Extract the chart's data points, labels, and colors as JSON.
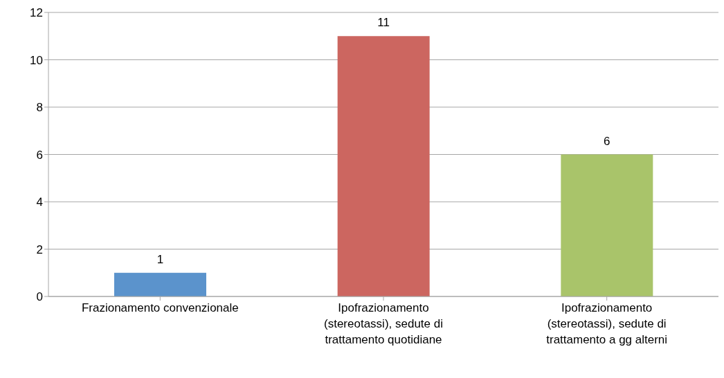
{
  "chart_data": {
    "type": "bar",
    "categories": [
      "Frazionamento convenzionale",
      "Ipofrazionamento (stereotassi), sedute di trattamento quotidiane",
      "Ipofrazionamento (stereotassi), sedute di trattamento a gg alterni"
    ],
    "values": [
      1,
      11,
      6
    ],
    "colors": [
      "#5b93cc",
      "#cc6660",
      "#a9c46a"
    ],
    "ylim": [
      0,
      12
    ],
    "yticks": [
      0,
      2,
      4,
      6,
      8,
      10,
      12
    ],
    "grid": "y",
    "data_labels": true
  }
}
